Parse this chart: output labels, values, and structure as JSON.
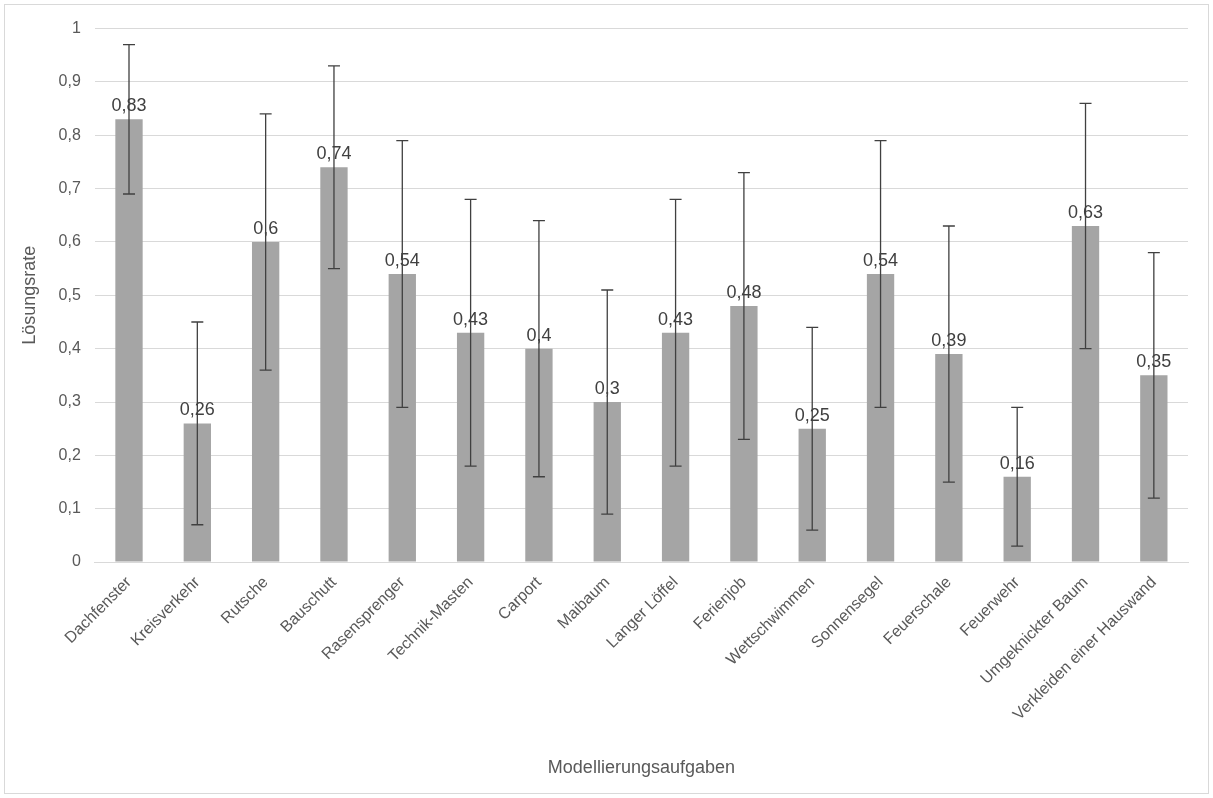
{
  "chart_data": {
    "type": "bar",
    "xlabel": "Modellierungsaufgaben",
    "ylabel": "Lösungsrate",
    "categories": [
      "Dachfenster",
      "Kreisverkehr",
      "Rutsche",
      "Bauschutt",
      "Rasensprenger",
      "Technik-Masten",
      "Carport",
      "Maibaum",
      "Langer Löffel",
      "Ferienjob",
      "Wettschwimmen",
      "Sonnensegel",
      "Feuerschale",
      "Feuerwehr",
      "Umgeknickter Baum",
      "Verkleiden einer Hauswand"
    ],
    "values": [
      0.83,
      0.26,
      0.6,
      0.74,
      0.54,
      0.43,
      0.4,
      0.3,
      0.43,
      0.48,
      0.25,
      0.54,
      0.39,
      0.16,
      0.63,
      0.35
    ],
    "value_labels": [
      "0,83",
      "0,26",
      "0,6",
      "0,74",
      "0,54",
      "0,43",
      "0,4",
      "0,3",
      "0,43",
      "0,48",
      "0,25",
      "0,54",
      "0,39",
      "0,16",
      "0,63",
      "0,35"
    ],
    "errors": [
      0.14,
      0.19,
      0.24,
      0.19,
      0.25,
      0.25,
      0.24,
      0.21,
      0.25,
      0.25,
      0.19,
      0.25,
      0.24,
      0.13,
      0.23,
      0.23
    ],
    "color": "#a5a5a5",
    "ylim": [
      0,
      1
    ],
    "yticks": [
      0,
      {
        "value": 0.1,
        "label": "0,1"
      },
      {
        "value": 0.2,
        "label": "0,2"
      },
      {
        "value": 0.3,
        "label": "0,3"
      },
      {
        "value": 0.4,
        "label": "0,4"
      },
      {
        "value": 0.5,
        "label": "0,5"
      },
      {
        "value": 0.6,
        "label": "0,6"
      },
      {
        "value": 0.7,
        "label": "0,7"
      },
      {
        "value": 0.8,
        "label": "0,8"
      },
      {
        "value": 0.9,
        "label": "0,9"
      },
      1
    ],
    "grid": "y",
    "legend": false
  }
}
